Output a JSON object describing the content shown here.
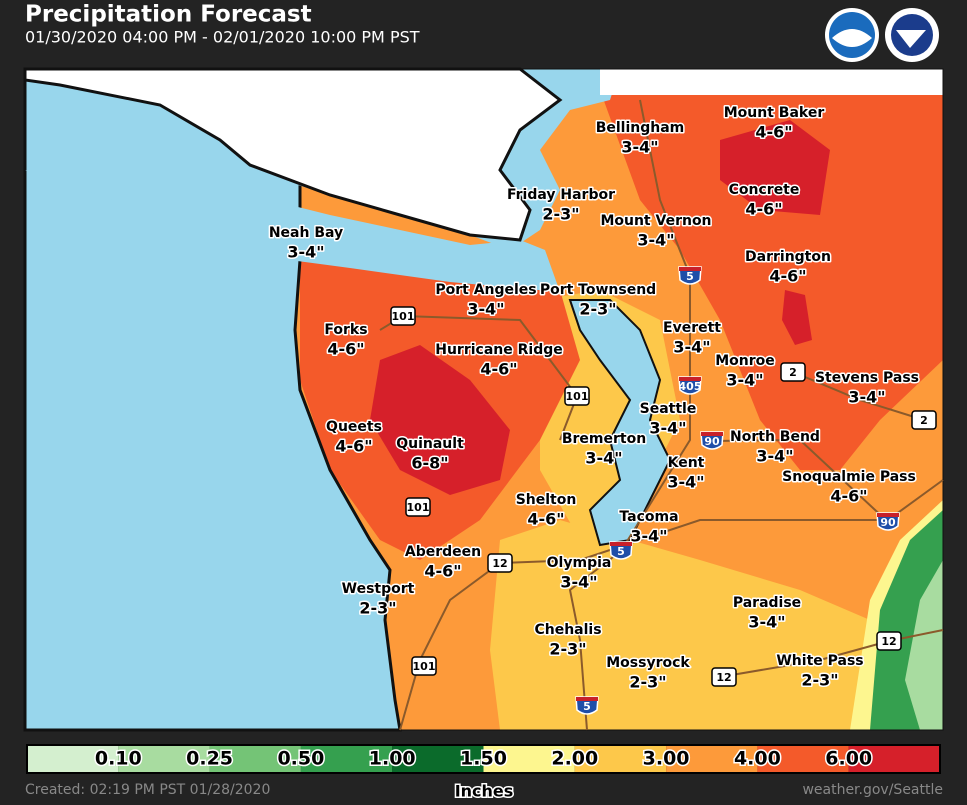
{
  "header": {
    "title": "Precipitation Forecast",
    "subtitle": "01/30/2020 04:00 PM - 02/01/2020 10:00 PM PST"
  },
  "map": {
    "locations": [
      {
        "name": "Mount Baker",
        "amount": "4-6\""
      },
      {
        "name": "Bellingham",
        "amount": "3-4\""
      },
      {
        "name": "Concrete",
        "amount": "4-6\""
      },
      {
        "name": "Friday Harbor",
        "amount": "2-3\""
      },
      {
        "name": "Mount Vernon",
        "amount": "3-4\""
      },
      {
        "name": "Neah Bay",
        "amount": "3-4\""
      },
      {
        "name": "Darrington",
        "amount": "4-6\""
      },
      {
        "name": "Port Angeles",
        "amount": "3-4\""
      },
      {
        "name": "Port Townsend",
        "amount": "2-3\""
      },
      {
        "name": "Forks",
        "amount": "4-6\""
      },
      {
        "name": "Everett",
        "amount": "3-4\""
      },
      {
        "name": "Hurricane Ridge",
        "amount": "4-6\""
      },
      {
        "name": "Monroe",
        "amount": "3-4\""
      },
      {
        "name": "Stevens Pass",
        "amount": "3-4\""
      },
      {
        "name": "Seattle",
        "amount": "3-4\""
      },
      {
        "name": "Queets",
        "amount": "4-6\""
      },
      {
        "name": "Quinault",
        "amount": "6-8\""
      },
      {
        "name": "Bremerton",
        "amount": "3-4\""
      },
      {
        "name": "North Bend",
        "amount": "3-4\""
      },
      {
        "name": "Kent",
        "amount": "3-4\""
      },
      {
        "name": "Snoqualmie Pass",
        "amount": "4-6\""
      },
      {
        "name": "Shelton",
        "amount": "4-6\""
      },
      {
        "name": "Tacoma",
        "amount": "3-4\""
      },
      {
        "name": "Aberdeen",
        "amount": "4-6\""
      },
      {
        "name": "Olympia",
        "amount": "3-4\""
      },
      {
        "name": "Westport",
        "amount": "2-3\""
      },
      {
        "name": "Paradise",
        "amount": "3-4\""
      },
      {
        "name": "Chehalis",
        "amount": "2-3\""
      },
      {
        "name": "Mossyrock",
        "amount": "2-3\""
      },
      {
        "name": "White Pass",
        "amount": "2-3\""
      }
    ],
    "shields": [
      "101",
      "101",
      "101",
      "101",
      "5",
      "5",
      "5",
      "405",
      "90",
      "90",
      "2",
      "2",
      "12",
      "12",
      "12"
    ]
  },
  "legend": {
    "labels": [
      "0.10",
      "0.25",
      "0.50",
      "1.00",
      "1.50",
      "2.00",
      "3.00",
      "4.00",
      "6.00"
    ],
    "colors": [
      "#d4efcf",
      "#a8dca0",
      "#74c476",
      "#35a04f",
      "#0b6b2b",
      "#fdf68f",
      "#fdc84a",
      "#fd9a3a",
      "#f45a2a",
      "#d6202a"
    ],
    "unit": "Inches"
  },
  "footer": {
    "created": "Created: 02:19 PM PST 01/28/2020",
    "source": "weather.gov/Seattle"
  }
}
